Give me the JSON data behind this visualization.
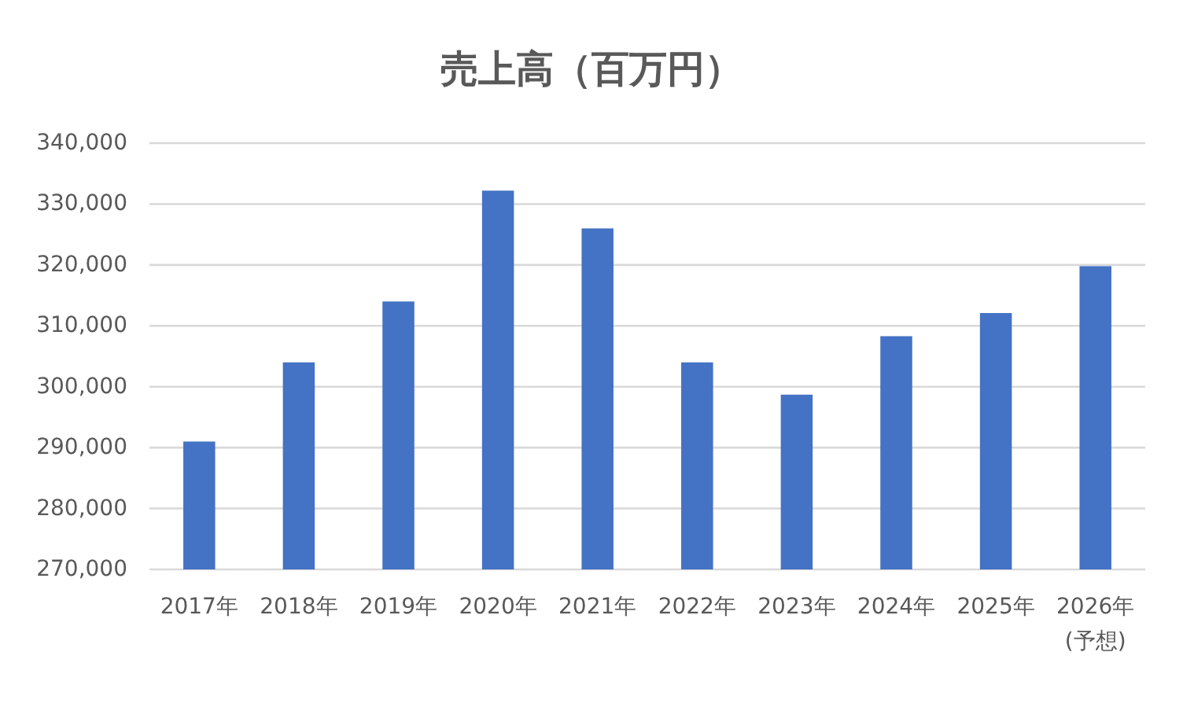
{
  "chart_data": {
    "type": "bar",
    "title": "売上高（百万円）",
    "categories": [
      "2017年",
      "2018年",
      "2019年",
      "2020年",
      "2021年",
      "2022年",
      "2023年",
      "2024年",
      "2025年",
      "2026年\n(予想)"
    ],
    "values": [
      291000,
      304000,
      314000,
      332200,
      326000,
      304000,
      298700,
      308300,
      312100,
      319800
    ],
    "color": "#4472c4",
    "ylim": [
      270000,
      340000
    ],
    "yticks": [
      {
        "value": 270000,
        "label": "270,000"
      },
      {
        "value": 280000,
        "label": "280,000"
      },
      {
        "value": 290000,
        "label": "290,000"
      },
      {
        "value": 300000,
        "label": "300,000"
      },
      {
        "value": 310000,
        "label": "310,000"
      },
      {
        "value": 320000,
        "label": "320,000"
      },
      {
        "value": 330000,
        "label": "330,000"
      },
      {
        "value": 340000,
        "label": "340,000"
      }
    ],
    "grid": "y"
  }
}
